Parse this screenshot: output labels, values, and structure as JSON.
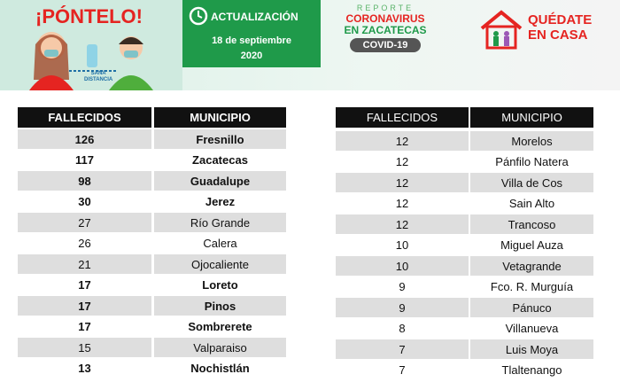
{
  "header": {
    "slogan": "¡PÓNTELO!",
    "sana_distancia": [
      "SANA",
      "DISTANCIA"
    ],
    "update_label": "ACTUALIZACIÓN",
    "update_date": [
      "18 de septiembre",
      "2020"
    ],
    "report_label": "REPORTE",
    "report_title": [
      "CORONAVIRUS",
      "EN ZACATECAS"
    ],
    "report_badge": "COVID-19",
    "stay_home": [
      "QUÉDATE",
      "EN CASA"
    ]
  },
  "tables": [
    {
      "columns": [
        "FALLECIDOS",
        "MUNICIPIO"
      ],
      "header_bold": true,
      "rows": [
        [
          126,
          "Fresnillo"
        ],
        [
          117,
          "Zacatecas"
        ],
        [
          98,
          "Guadalupe"
        ],
        [
          30,
          "Jerez"
        ],
        [
          27,
          "Río Grande"
        ],
        [
          26,
          "Calera"
        ],
        [
          21,
          "Ojocaliente"
        ],
        [
          17,
          "Loreto"
        ],
        [
          17,
          "Pinos"
        ],
        [
          17,
          "Sombrerete"
        ],
        [
          15,
          "Valparaiso"
        ],
        [
          13,
          "Nochistlán"
        ]
      ],
      "bold_rows": [
        true,
        true,
        true,
        true,
        false,
        false,
        false,
        true,
        true,
        true,
        false,
        true
      ]
    },
    {
      "columns": [
        "FALLECIDOS",
        "MUNICIPIO"
      ],
      "header_bold": false,
      "rows": [
        [
          12,
          "Morelos"
        ],
        [
          12,
          "Pánfilo Natera"
        ],
        [
          12,
          "Villa de Cos"
        ],
        [
          12,
          "Sain Alto"
        ],
        [
          12,
          "Trancoso"
        ],
        [
          10,
          "Miguel Auza"
        ],
        [
          10,
          "Vetagrande"
        ],
        [
          9,
          "Fco. R. Murguía"
        ],
        [
          9,
          "Pánuco"
        ],
        [
          8,
          "Villanueva"
        ],
        [
          7,
          "Luis Moya"
        ],
        [
          7,
          "Tlaltenango"
        ]
      ],
      "bold_rows": [
        false,
        false,
        false,
        false,
        false,
        false,
        false,
        false,
        false,
        false,
        false,
        false
      ]
    }
  ]
}
